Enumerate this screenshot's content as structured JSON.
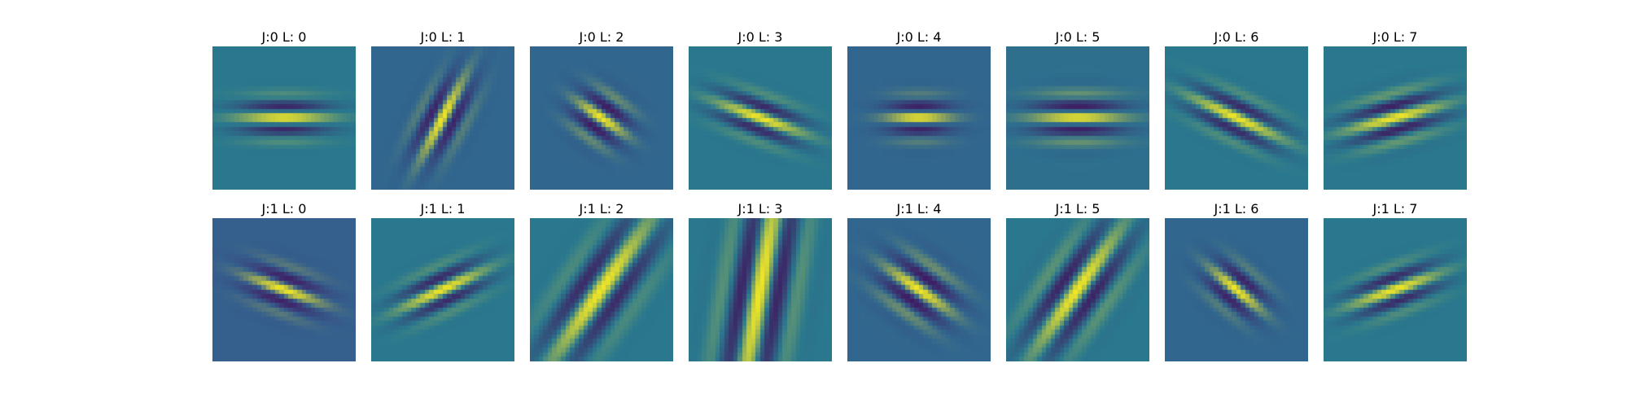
{
  "panels": [
    {
      "title": "J:0 L: 0",
      "background": "#2a788e",
      "angle": 90,
      "freq": 0.55,
      "sx": 6,
      "sy": 14,
      "amp": 1.0
    },
    {
      "title": "J:0 L: 1",
      "background": "#31668e",
      "angle": 28,
      "freq": 0.55,
      "sx": 6,
      "sy": 14,
      "amp": 1.0
    },
    {
      "title": "J:0 L: 2",
      "background": "#31668e",
      "angle": 125,
      "freq": 0.55,
      "sx": 7,
      "sy": 9,
      "amp": 1.0
    },
    {
      "title": "J:0 L: 3",
      "background": "#2a788e",
      "angle": 110,
      "freq": 0.55,
      "sx": 6,
      "sy": 14,
      "amp": 1.0
    },
    {
      "title": "J:0 L: 4",
      "background": "#31668e",
      "angle": 90,
      "freq": 0.55,
      "sx": 6,
      "sy": 10,
      "amp": 1.0
    },
    {
      "title": "J:0 L: 5",
      "background": "#2e6f8e",
      "angle": 90,
      "freq": 0.55,
      "sx": 7,
      "sy": 14,
      "amp": 1.0
    },
    {
      "title": "J:0 L: 6",
      "background": "#2a788e",
      "angle": 115,
      "freq": 0.55,
      "sx": 6,
      "sy": 15,
      "amp": 1.0
    },
    {
      "title": "J:0 L: 7",
      "background": "#2a788e",
      "angle": 75,
      "freq": 0.55,
      "sx": 7,
      "sy": 15,
      "amp": 1.0
    },
    {
      "title": "J:1 L: 0",
      "background": "#355f8d",
      "angle": 110,
      "freq": 0.55,
      "sx": 6,
      "sy": 12,
      "amp": 1.0
    },
    {
      "title": "J:1 L: 1",
      "background": "#2a788e",
      "angle": 65,
      "freq": 0.55,
      "sx": 6,
      "sy": 14,
      "amp": 1.0
    },
    {
      "title": "J:1 L: 2",
      "background": "#2a788e",
      "angle": 35,
      "freq": 0.35,
      "sx": 9,
      "sy": 26,
      "amp": 1.0
    },
    {
      "title": "J:1 L: 3",
      "background": "#2a788e",
      "angle": 10,
      "freq": 0.35,
      "sx": 10,
      "sy": 40,
      "amp": 1.0
    },
    {
      "title": "J:1 L: 4",
      "background": "#31668e",
      "angle": 125,
      "freq": 0.5,
      "sx": 8,
      "sy": 12,
      "amp": 1.0
    },
    {
      "title": "J:1 L: 5",
      "background": "#2a788e",
      "angle": 35,
      "freq": 0.4,
      "sx": 9,
      "sy": 22,
      "amp": 1.0
    },
    {
      "title": "J:1 L: 6",
      "background": "#31668e",
      "angle": 130,
      "freq": 0.55,
      "sx": 6,
      "sy": 10,
      "amp": 1.0
    },
    {
      "title": "J:1 L: 7",
      "background": "#2a788e",
      "angle": 70,
      "freq": 0.55,
      "sx": 6,
      "sy": 14,
      "amp": 1.0
    }
  ]
}
